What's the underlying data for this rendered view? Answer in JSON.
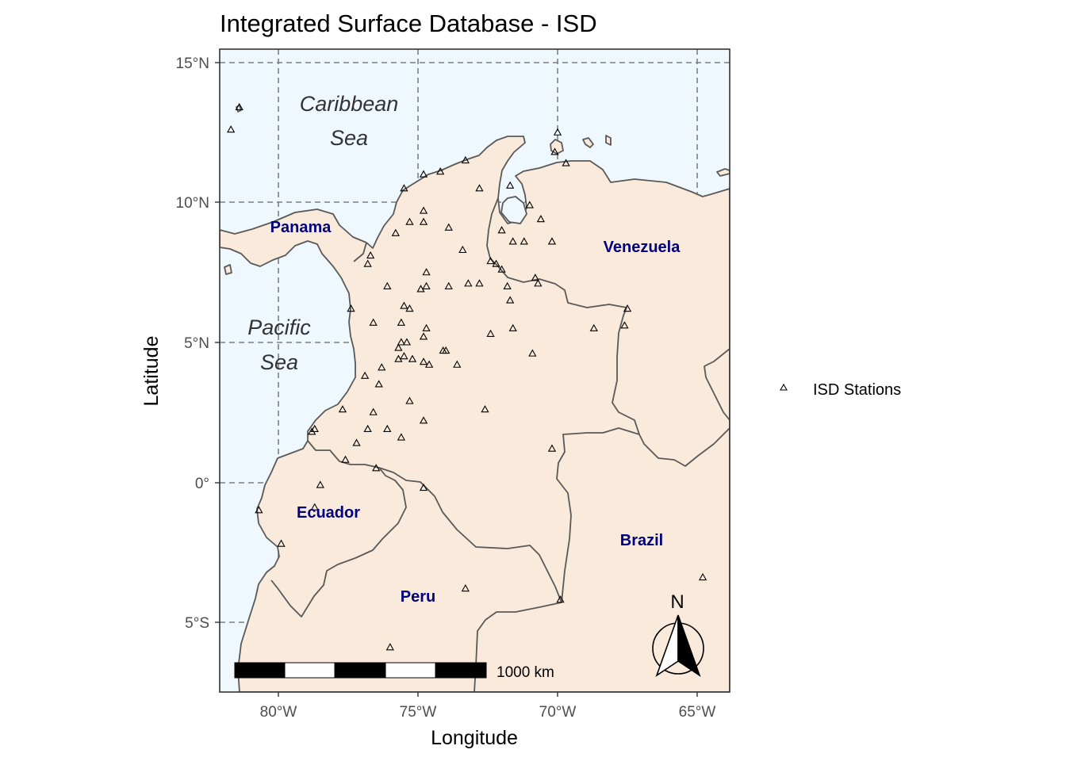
{
  "title": "Integrated Surface Database - ISD",
  "axes": {
    "x_title": "Longitude",
    "y_title": "Latitude",
    "x_ticks": [
      {
        "value": -80,
        "label": "80°W"
      },
      {
        "value": -75,
        "label": "75°W"
      },
      {
        "value": -70,
        "label": "70°W"
      },
      {
        "value": -65,
        "label": "65°W"
      }
    ],
    "y_ticks": [
      {
        "value": 15,
        "label": "15°N"
      },
      {
        "value": 10,
        "label": "10°N"
      },
      {
        "value": 5,
        "label": "5°N"
      },
      {
        "value": 0,
        "label": "0°"
      },
      {
        "value": -5,
        "label": "5°S"
      }
    ],
    "xlim": [
      -82.0,
      -63.9
    ],
    "ylim": [
      -7.5,
      15.4
    ]
  },
  "labels": {
    "countries": [
      {
        "name": "Panama",
        "lon": -79.2,
        "lat": 9.1
      },
      {
        "name": "Venezuela",
        "lon": -66.7,
        "lat": 8.3
      },
      {
        "name": "Ecuador",
        "lon": -78.3,
        "lat": -1.1
      },
      {
        "name": "Peru",
        "lon": -74.8,
        "lat": -4.1
      },
      {
        "name": "Brazil",
        "lon": -67.2,
        "lat": -2.1
      }
    ],
    "seas": [
      {
        "lines": [
          "Caribbean",
          "Sea"
        ],
        "lon": -77.5,
        "lat": 13.4
      },
      {
        "lines": [
          "Pacific",
          "Sea"
        ],
        "lon": -80.0,
        "lat": 5.4
      }
    ]
  },
  "legend": {
    "label": "ISD Stations",
    "symbol": "triangle-open",
    "position": "right"
  },
  "scale_bar": {
    "label": "1000 km",
    "segments": 5,
    "position": "bottom-left"
  },
  "north_arrow": {
    "label": "N",
    "position": "bottom-right"
  },
  "colors": {
    "sea": "#eff7ff",
    "land": "#faeadb",
    "border": "#595959",
    "grid": "#7f7f7f",
    "country_label": "#00007f",
    "sea_label": "#333333"
  },
  "chart_data": {
    "type": "scatter",
    "title": "Integrated Surface Database - ISD",
    "xlabel": "Longitude",
    "ylabel": "Latitude",
    "xlim": [
      -82.0,
      -63.9
    ],
    "ylim": [
      -7.5,
      15.4
    ],
    "grid": true,
    "series": [
      {
        "name": "ISD Stations",
        "points": [
          [
            -81.4,
            13.4
          ],
          [
            -81.7,
            12.6
          ],
          [
            -70.0,
            12.5
          ],
          [
            -70.1,
            11.8
          ],
          [
            -69.7,
            11.4
          ],
          [
            -73.3,
            11.5
          ],
          [
            -74.8,
            11.0
          ],
          [
            -74.2,
            11.1
          ],
          [
            -72.8,
            10.5
          ],
          [
            -75.5,
            10.5
          ],
          [
            -71.7,
            10.6
          ],
          [
            -71.0,
            9.9
          ],
          [
            -74.8,
            9.7
          ],
          [
            -75.3,
            9.3
          ],
          [
            -74.8,
            9.3
          ],
          [
            -73.9,
            9.1
          ],
          [
            -75.8,
            8.9
          ],
          [
            -72.0,
            9.0
          ],
          [
            -70.6,
            9.4
          ],
          [
            -71.6,
            8.6
          ],
          [
            -71.2,
            8.6
          ],
          [
            -70.2,
            8.6
          ],
          [
            -73.4,
            8.3
          ],
          [
            -76.7,
            8.1
          ],
          [
            -76.8,
            7.8
          ],
          [
            -72.4,
            7.9
          ],
          [
            -72.2,
            7.8
          ],
          [
            -72.0,
            7.6
          ],
          [
            -74.7,
            7.5
          ],
          [
            -73.2,
            7.1
          ],
          [
            -72.8,
            7.1
          ],
          [
            -71.8,
            7.0
          ],
          [
            -70.7,
            7.1
          ],
          [
            -70.8,
            7.3
          ],
          [
            -74.7,
            7.0
          ],
          [
            -74.9,
            6.9
          ],
          [
            -73.9,
            7.0
          ],
          [
            -76.1,
            7.0
          ],
          [
            -71.7,
            6.5
          ],
          [
            -77.4,
            6.2
          ],
          [
            -75.5,
            6.3
          ],
          [
            -75.3,
            6.2
          ],
          [
            -67.5,
            6.2
          ],
          [
            -76.6,
            5.7
          ],
          [
            -75.6,
            5.7
          ],
          [
            -71.6,
            5.5
          ],
          [
            -68.7,
            5.5
          ],
          [
            -67.6,
            5.6
          ],
          [
            -74.7,
            5.5
          ],
          [
            -74.8,
            5.2
          ],
          [
            -72.4,
            5.3
          ],
          [
            -75.6,
            5.0
          ],
          [
            -75.4,
            5.0
          ],
          [
            -75.7,
            4.8
          ],
          [
            -74.1,
            4.7
          ],
          [
            -74.0,
            4.7
          ],
          [
            -70.9,
            4.6
          ],
          [
            -75.5,
            4.5
          ],
          [
            -75.2,
            4.4
          ],
          [
            -75.7,
            4.4
          ],
          [
            -74.8,
            4.3
          ],
          [
            -74.6,
            4.2
          ],
          [
            -73.6,
            4.2
          ],
          [
            -76.3,
            4.1
          ],
          [
            -76.9,
            3.8
          ],
          [
            -76.4,
            3.5
          ],
          [
            -75.3,
            2.9
          ],
          [
            -76.6,
            2.5
          ],
          [
            -72.6,
            2.6
          ],
          [
            -77.7,
            2.6
          ],
          [
            -74.8,
            2.2
          ],
          [
            -76.8,
            1.9
          ],
          [
            -76.1,
            1.9
          ],
          [
            -78.8,
            1.8
          ],
          [
            -78.7,
            1.9
          ],
          [
            -75.6,
            1.6
          ],
          [
            -77.2,
            1.4
          ],
          [
            -70.2,
            1.2
          ],
          [
            -77.6,
            0.8
          ],
          [
            -76.5,
            0.5
          ],
          [
            -74.8,
            -0.2
          ],
          [
            -78.5,
            -0.1
          ],
          [
            -80.7,
            -1.0
          ],
          [
            -78.7,
            -0.9
          ],
          [
            -79.9,
            -2.2
          ],
          [
            -73.3,
            -3.8
          ],
          [
            -69.9,
            -4.2
          ],
          [
            -64.8,
            -3.4
          ],
          [
            -76.0,
            -5.9
          ]
        ]
      }
    ]
  }
}
